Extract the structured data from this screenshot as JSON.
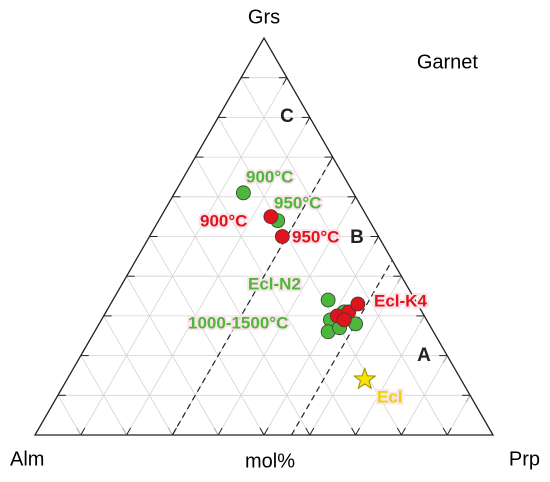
{
  "chart_data": {
    "type": "ternary",
    "title": "Garnet",
    "axis_label": "mol%",
    "vertices": {
      "top": "Grs",
      "left": "Alm",
      "right": "Prp"
    },
    "ticks": [
      10,
      20,
      30,
      40,
      50,
      60,
      70,
      80,
      90
    ],
    "grid": true,
    "boundaries_prp": [
      30,
      56
    ],
    "regions": [
      "C",
      "B",
      "A"
    ],
    "series": [
      {
        "name": "Ecl-N2",
        "color": "#4cb83a",
        "marker": "circle",
        "alm": [
          24,
          20,
          19,
          21,
          23,
          20,
          16,
          17
        ],
        "prp": [
          15,
          26,
          47,
          50,
          51,
          53,
          56,
          52
        ],
        "grs": [
          61,
          54,
          34,
          29,
          26,
          27,
          28,
          31
        ]
      },
      {
        "name": "Ecl-K4",
        "color": "#e0141c",
        "marker": "circle",
        "alm": [
          21,
          21,
          19,
          16,
          13,
          18
        ],
        "prp": [
          24,
          29,
          51,
          53,
          54,
          53
        ],
        "grs": [
          55,
          50,
          30,
          31,
          33,
          29
        ]
      },
      {
        "name": "Ecl",
        "color": "#f5e400",
        "marker": "star",
        "alm": [
          21
        ],
        "prp": [
          65
        ],
        "grs": [
          14
        ]
      }
    ],
    "annotations": [
      {
        "text": "900°C",
        "color": "#4cb83a"
      },
      {
        "text": "950°C",
        "color": "#4cb83a"
      },
      {
        "text": "900°C",
        "color": "#e0141c"
      },
      {
        "text": "950°C",
        "color": "#e0141c"
      },
      {
        "text": "Ecl-N2",
        "color": "#4cb83a"
      },
      {
        "text": "Ecl-K4",
        "color": "#e0141c"
      },
      {
        "text": "1000-1500°C",
        "color": "#4cb83a"
      },
      {
        "text": "Ecl",
        "color": "#e8d600"
      }
    ]
  }
}
